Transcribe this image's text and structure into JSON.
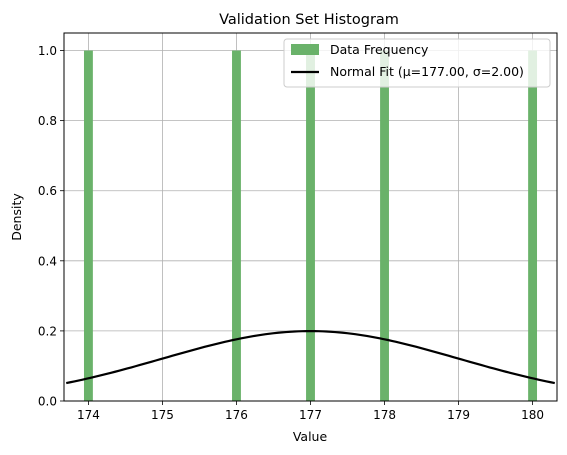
{
  "chart_data": {
    "type": "bar",
    "title": "Validation Set Histogram",
    "xlabel": "Value",
    "ylabel": "Density",
    "xlim": [
      173.67,
      180.33
    ],
    "ylim": [
      0,
      1.05
    ],
    "xticks": [
      174,
      175,
      176,
      177,
      178,
      179,
      180
    ],
    "yticks": [
      0.0,
      0.2,
      0.4,
      0.6,
      0.8,
      1.0
    ],
    "xtick_labels": [
      "174",
      "175",
      "176",
      "177",
      "178",
      "179",
      "180"
    ],
    "ytick_labels": [
      "0.0",
      "0.2",
      "0.4",
      "0.6",
      "0.8",
      "1.0"
    ],
    "grid": true,
    "legend_position": "top-right",
    "bar_color": "#6ab26a",
    "line_color": "#000000",
    "bars": [
      {
        "x": 174,
        "width": 0.12,
        "value": 1.0
      },
      {
        "x": 176,
        "width": 0.12,
        "value": 1.0
      },
      {
        "x": 177,
        "width": 0.12,
        "value": 1.0
      },
      {
        "x": 178,
        "width": 0.12,
        "value": 1.0
      },
      {
        "x": 180,
        "width": 0.12,
        "value": 1.0
      }
    ],
    "series": [
      {
        "name": "Data Frequency",
        "kind": "histogram"
      },
      {
        "name": "Normal Fit (μ=177.00, σ=2.00)",
        "kind": "line",
        "mu": 177.0,
        "sigma": 2.0,
        "x_range": [
          173.7,
          180.3
        ]
      }
    ]
  }
}
